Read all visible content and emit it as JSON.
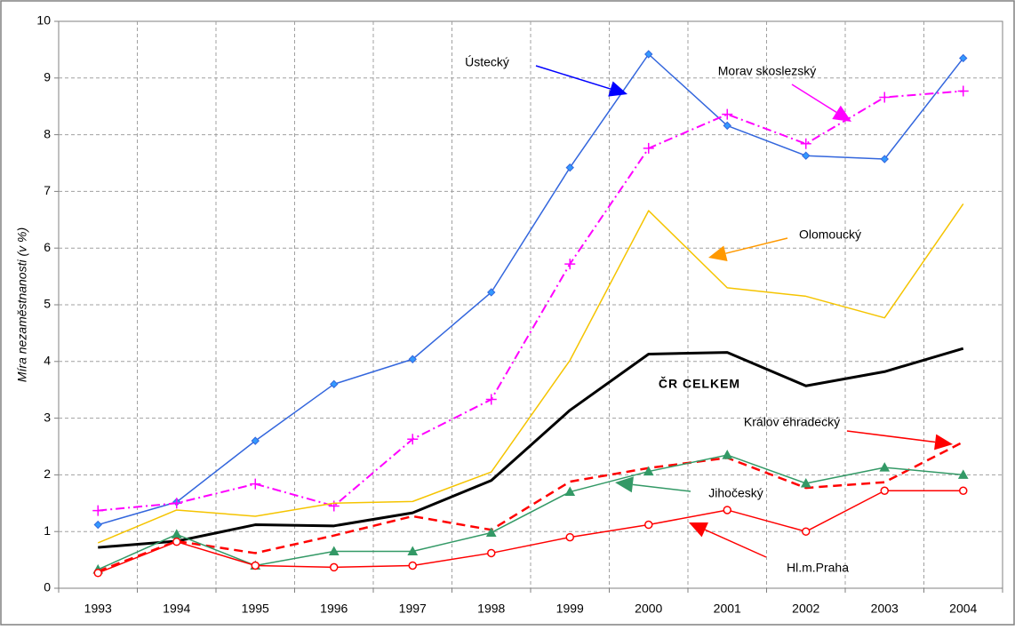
{
  "chart_data": {
    "type": "line",
    "y_label": "Míra nezaměstnanosti (v %)",
    "categories": [
      "1993",
      "1994",
      "1995",
      "1996",
      "1997",
      "1998",
      "1999",
      "2000",
      "2001",
      "2002",
      "2003",
      "2004"
    ],
    "ylim": [
      0,
      10
    ],
    "yticks": [
      0,
      1,
      2,
      3,
      4,
      5,
      6,
      7,
      8,
      9,
      10
    ],
    "grid": true,
    "series": [
      {
        "name": "Ústecký",
        "color": "#3366dd",
        "dash": "solid",
        "width": 1.5,
        "marker": "diamond",
        "values": [
          1.12,
          1.52,
          2.6,
          3.6,
          4.04,
          5.22,
          7.42,
          9.42,
          8.16,
          7.63,
          7.57,
          9.35
        ]
      },
      {
        "name": "Morav skoslezský",
        "color": "#ff00ff",
        "dash": "dashdot",
        "width": 2,
        "marker": "plus",
        "values": [
          1.37,
          1.5,
          1.84,
          1.45,
          2.63,
          3.33,
          5.72,
          7.76,
          8.36,
          7.84,
          8.66,
          8.77
        ]
      },
      {
        "name": "Olomoucký",
        "color": "#f5c400",
        "dash": "solid",
        "width": 1.5,
        "marker": "none",
        "values": [
          0.8,
          1.38,
          1.27,
          1.5,
          1.53,
          2.05,
          4.02,
          6.66,
          5.3,
          5.15,
          4.77,
          6.78
        ]
      },
      {
        "name": "ČR CELKEM",
        "color": "#000000",
        "dash": "solid",
        "width": 3,
        "marker": "none",
        "values": [
          0.72,
          0.83,
          1.12,
          1.1,
          1.33,
          1.9,
          3.14,
          4.13,
          4.16,
          3.57,
          3.82,
          4.23
        ]
      },
      {
        "name": "Králov éhradecký",
        "color": "#ff0000",
        "dash": "dashed",
        "width": 2.5,
        "marker": "none",
        "values": [
          0.3,
          0.83,
          0.62,
          0.93,
          1.27,
          1.03,
          1.88,
          2.12,
          2.3,
          1.77,
          1.87,
          2.58
        ]
      },
      {
        "name": "Jihočeský",
        "color": "#339966",
        "dash": "solid",
        "width": 1.5,
        "marker": "triangle",
        "values": [
          0.33,
          0.95,
          0.4,
          0.65,
          0.65,
          0.98,
          1.7,
          2.06,
          2.35,
          1.85,
          2.13,
          2.0
        ]
      },
      {
        "name": "Hl.m.Praha",
        "color": "#ff0000",
        "dash": "solid",
        "width": 1.5,
        "marker": "circle",
        "values": [
          0.27,
          0.82,
          0.4,
          0.37,
          0.4,
          0.62,
          0.9,
          1.12,
          1.38,
          1.0,
          1.72,
          1.72
        ]
      }
    ]
  }
}
